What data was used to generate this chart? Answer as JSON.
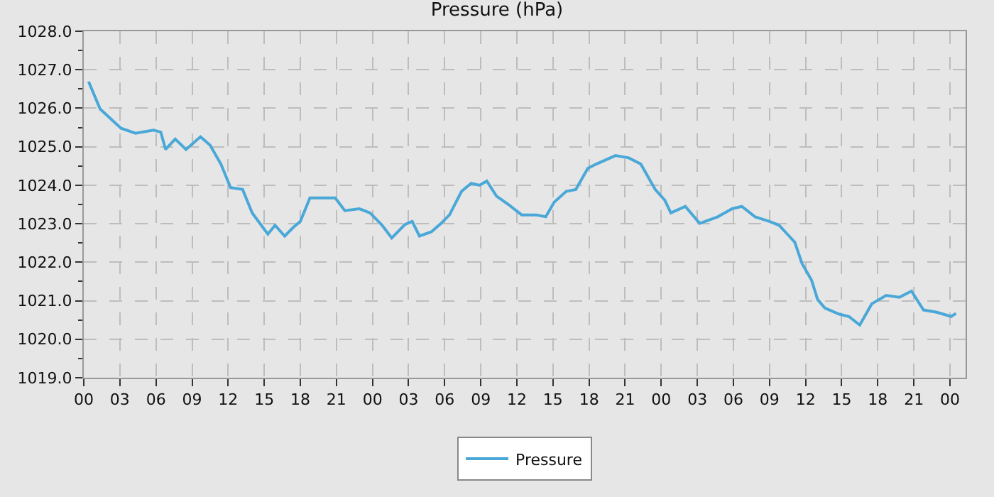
{
  "chart_data": {
    "type": "line",
    "title": "Pressure (hPa)",
    "x": [
      0.4,
      1.36,
      3.1,
      4.3,
      5.8,
      6.4,
      6.8,
      7.6,
      8.5,
      9.7,
      10.5,
      11.4,
      12.2,
      13.2,
      14.0,
      15.3,
      15.9,
      16.7,
      17.4,
      18.0,
      18.8,
      19.8,
      20.9,
      21.7,
      22.9,
      23.8,
      24.8,
      25.6,
      26.7,
      27.3,
      27.9,
      28.9,
      29.7,
      30.4,
      31.4,
      32.2,
      32.9,
      33.5,
      34.3,
      35.3,
      36.4,
      37.6,
      38.4,
      39.1,
      40.1,
      40.9,
      41.9,
      42.6,
      44.2,
      45.3,
      46.3,
      47.5,
      48.3,
      48.8,
      50.0,
      51.2,
      52.7,
      53.9,
      54.7,
      55.8,
      57.0,
      57.8,
      58.3,
      59.1,
      59.7,
      60.5,
      61.0,
      61.6,
      62.8,
      63.6,
      64.5,
      65.5,
      66.7,
      67.8,
      68.8,
      69.8,
      70.9,
      72.1,
      72.5
    ],
    "series": [
      {
        "name": "Pressure",
        "color": "#4aa8d8",
        "values": [
          1026.69,
          1025.98,
          1025.48,
          1025.35,
          1025.43,
          1025.38,
          1024.93,
          1025.2,
          1024.93,
          1025.26,
          1025.04,
          1024.55,
          1023.94,
          1023.89,
          1023.28,
          1022.73,
          1022.96,
          1022.68,
          1022.9,
          1023.06,
          1023.67,
          1023.67,
          1023.67,
          1023.34,
          1023.39,
          1023.28,
          1022.96,
          1022.63,
          1022.98,
          1023.06,
          1022.68,
          1022.79,
          1023.01,
          1023.23,
          1023.84,
          1024.05,
          1024.0,
          1024.11,
          1023.72,
          1023.5,
          1023.23,
          1023.23,
          1023.18,
          1023.56,
          1023.84,
          1023.89,
          1024.44,
          1024.55,
          1024.77,
          1024.71,
          1024.55,
          1023.89,
          1023.61,
          1023.28,
          1023.45,
          1023.01,
          1023.18,
          1023.39,
          1023.45,
          1023.18,
          1023.06,
          1022.96,
          1022.79,
          1022.52,
          1021.97,
          1021.53,
          1021.03,
          1020.81,
          1020.65,
          1020.59,
          1020.37,
          1020.92,
          1021.14,
          1021.09,
          1021.25,
          1020.76,
          1020.7,
          1020.59,
          1020.67
        ]
      }
    ],
    "xlim": [
      0,
      73.3
    ],
    "xticks": [
      {
        "value": 0,
        "label": "00"
      },
      {
        "value": 3,
        "label": "03"
      },
      {
        "value": 6,
        "label": "06"
      },
      {
        "value": 9,
        "label": "09"
      },
      {
        "value": 12,
        "label": "12"
      },
      {
        "value": 15,
        "label": "15"
      },
      {
        "value": 18,
        "label": "18"
      },
      {
        "value": 21,
        "label": "21"
      },
      {
        "value": 24,
        "label": "00"
      },
      {
        "value": 27,
        "label": "03"
      },
      {
        "value": 30,
        "label": "06"
      },
      {
        "value": 33,
        "label": "09"
      },
      {
        "value": 36,
        "label": "12"
      },
      {
        "value": 39,
        "label": "15"
      },
      {
        "value": 42,
        "label": "18"
      },
      {
        "value": 45,
        "label": "21"
      },
      {
        "value": 48,
        "label": "00"
      },
      {
        "value": 51,
        "label": "03"
      },
      {
        "value": 54,
        "label": "06"
      },
      {
        "value": 57,
        "label": "09"
      },
      {
        "value": 60,
        "label": "12"
      },
      {
        "value": 63,
        "label": "15"
      },
      {
        "value": 66,
        "label": "18"
      },
      {
        "value": 69,
        "label": "21"
      },
      {
        "value": 72,
        "label": "00"
      }
    ],
    "ylim": [
      1019,
      1028
    ],
    "yticks": [
      {
        "value": 1019,
        "label": "1019.0"
      },
      {
        "value": 1019.5,
        "label": null
      },
      {
        "value": 1020,
        "label": "1020.0"
      },
      {
        "value": 1020.5,
        "label": null
      },
      {
        "value": 1021,
        "label": "1021.0"
      },
      {
        "value": 1021.5,
        "label": null
      },
      {
        "value": 1022,
        "label": "1022.0"
      },
      {
        "value": 1022.5,
        "label": null
      },
      {
        "value": 1023,
        "label": "1023.0"
      },
      {
        "value": 1023.5,
        "label": null
      },
      {
        "value": 1024,
        "label": "1024.0"
      },
      {
        "value": 1024.5,
        "label": null
      },
      {
        "value": 1025,
        "label": "1025.0"
      },
      {
        "value": 1025.5,
        "label": null
      },
      {
        "value": 1026,
        "label": "1026.0"
      },
      {
        "value": 1026.5,
        "label": null
      },
      {
        "value": 1027,
        "label": "1027.0"
      },
      {
        "value": 1027.5,
        "label": null
      },
      {
        "value": 1028,
        "label": "1028.0"
      }
    ],
    "grid": true,
    "legend": "bottom",
    "marker": "none",
    "line_style": "solid"
  }
}
